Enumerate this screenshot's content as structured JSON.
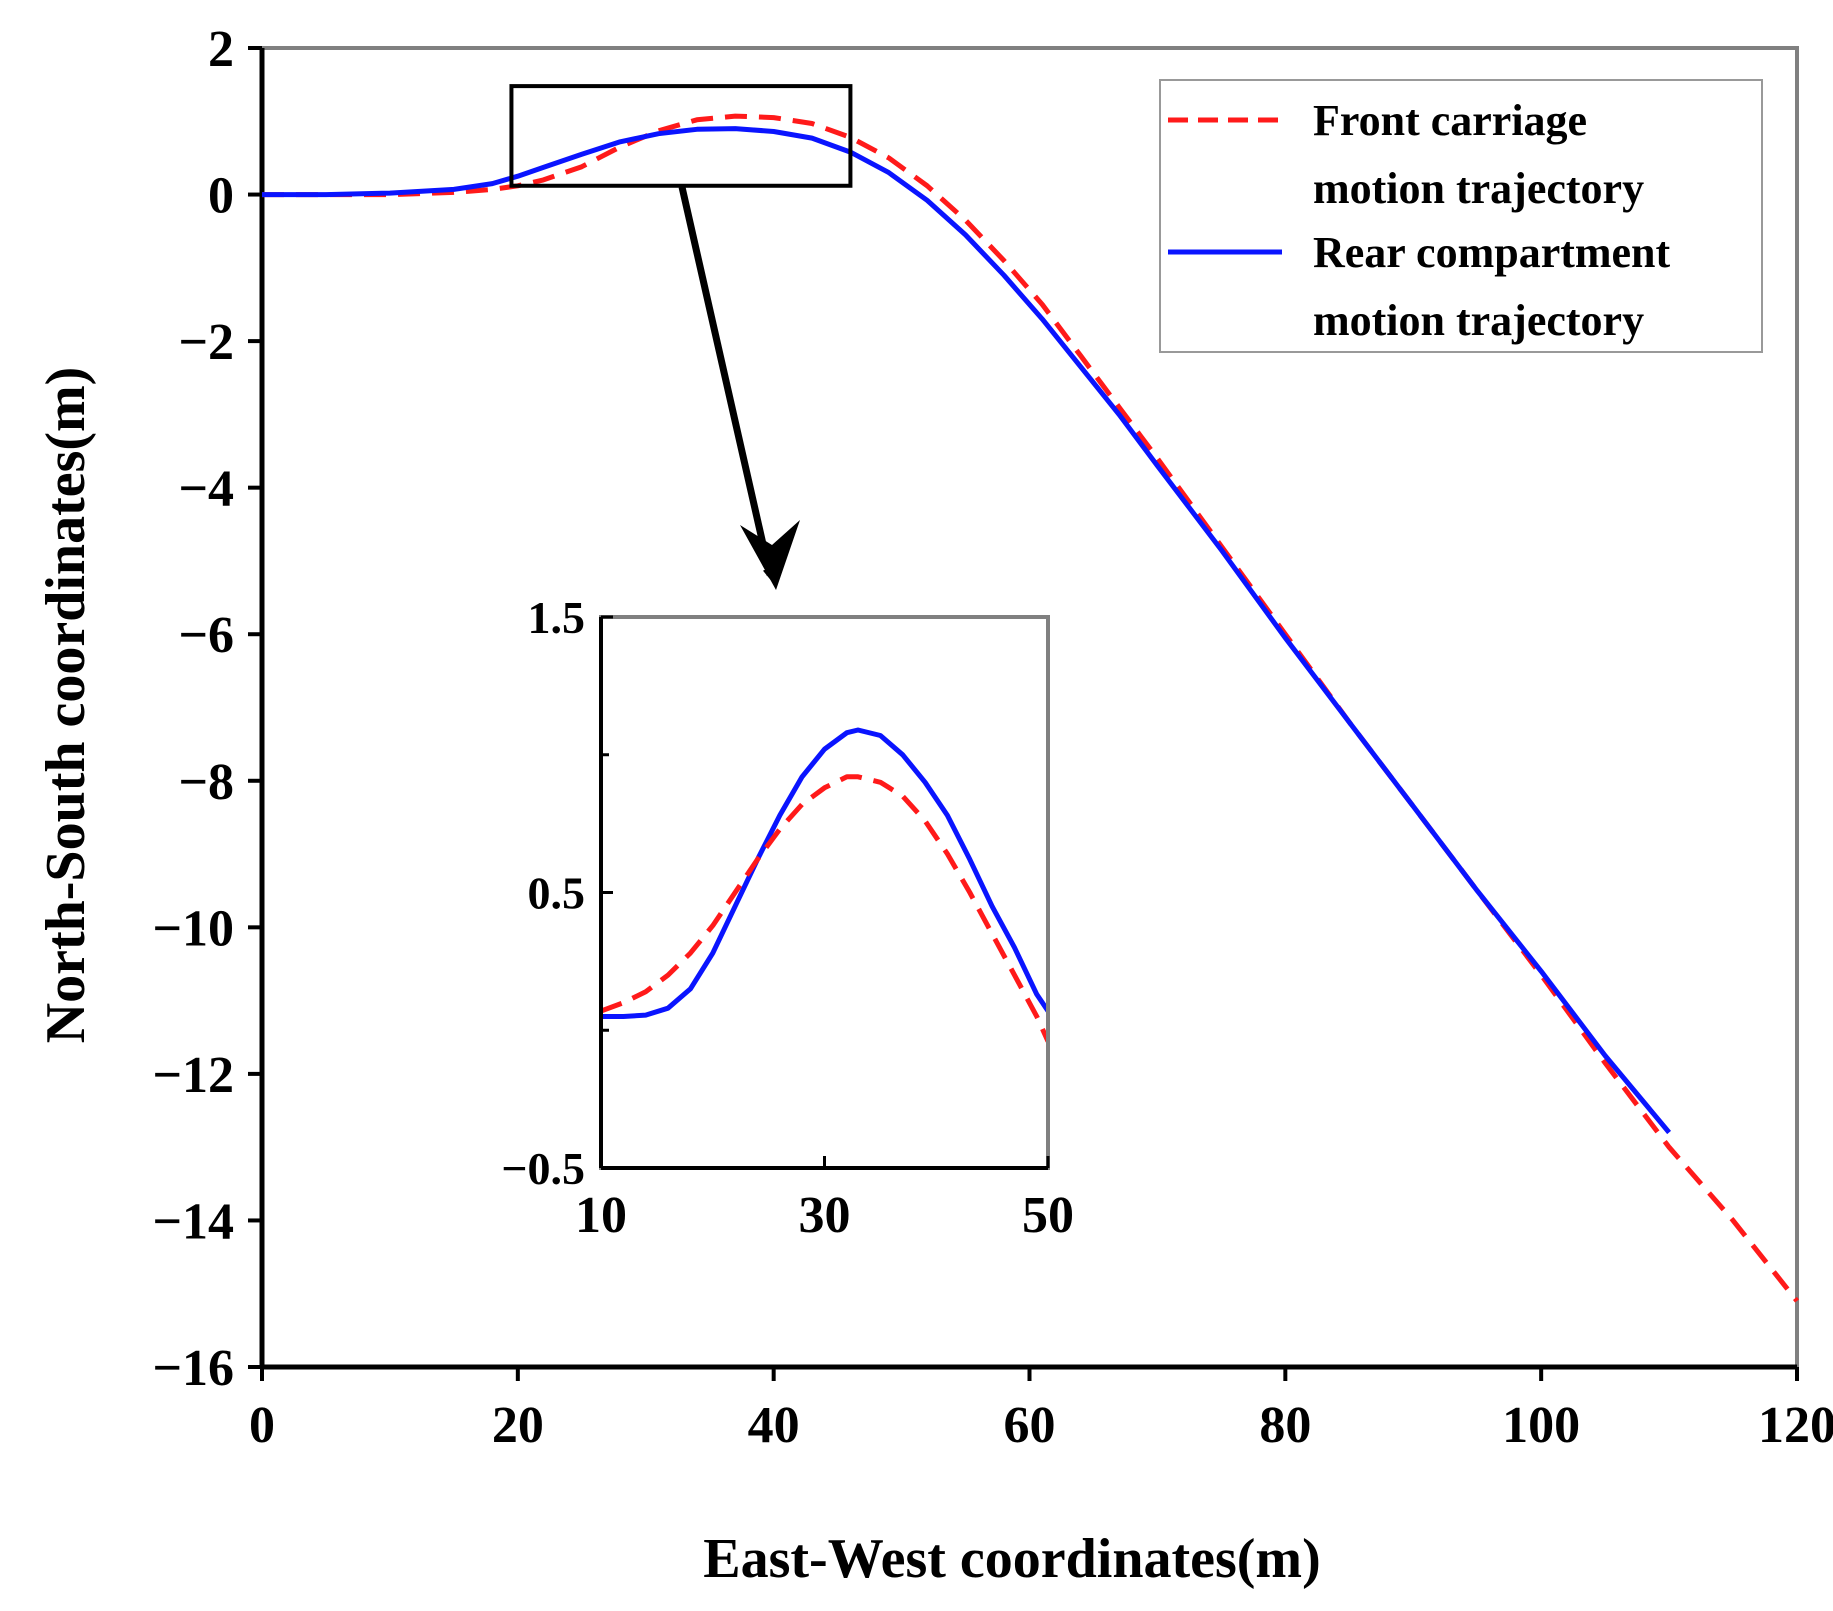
{
  "chart_data": {
    "type": "line",
    "xlabel": "East-West coordinates(m)",
    "ylabel": "North-South coordinates(m)",
    "xlim": [
      0,
      120
    ],
    "ylim": [
      -16,
      2
    ],
    "x_ticks": [
      "0",
      "20",
      "40",
      "60",
      "80",
      "100",
      "120"
    ],
    "y_ticks": [
      "2",
      "0",
      "−2",
      "−4",
      "−6",
      "−8",
      "−10",
      "−12",
      "−14",
      "−16"
    ],
    "legend": {
      "placement": "top-right",
      "entries": [
        {
          "line1": "Front carriage",
          "line2": "motion trajectory"
        },
        {
          "line1": "Rear compartment",
          "line2": "motion trajectory"
        }
      ]
    },
    "series": [
      {
        "name": "Front carriage motion trajectory",
        "color": "#ff1a1a",
        "style": "dashed",
        "points": [
          [
            0,
            0
          ],
          [
            5,
            0
          ],
          [
            10,
            0
          ],
          [
            15,
            0.03
          ],
          [
            18,
            0.07
          ],
          [
            20,
            0.12
          ],
          [
            22,
            0.2
          ],
          [
            25,
            0.38
          ],
          [
            28,
            0.65
          ],
          [
            31,
            0.87
          ],
          [
            34,
            1.02
          ],
          [
            37,
            1.07
          ],
          [
            40,
            1.05
          ],
          [
            43,
            0.97
          ],
          [
            46,
            0.78
          ],
          [
            49,
            0.5
          ],
          [
            52,
            0.12
          ],
          [
            55,
            -0.35
          ],
          [
            58,
            -0.9
          ],
          [
            61,
            -1.5
          ],
          [
            64,
            -2.2
          ],
          [
            67,
            -2.9
          ],
          [
            70,
            -3.6
          ],
          [
            75,
            -4.8
          ],
          [
            80,
            -6.0
          ],
          [
            85,
            -7.2
          ],
          [
            90,
            -8.35
          ],
          [
            95,
            -9.5
          ],
          [
            100,
            -10.65
          ],
          [
            105,
            -11.85
          ],
          [
            110,
            -13.0
          ],
          [
            115,
            -14.0
          ],
          [
            120,
            -15.1
          ]
        ]
      },
      {
        "name": "Rear compartment motion trajectory",
        "color": "#0a14ff",
        "style": "solid",
        "points": [
          [
            0,
            0
          ],
          [
            5,
            0
          ],
          [
            10,
            0.02
          ],
          [
            15,
            0.07
          ],
          [
            18,
            0.15
          ],
          [
            20,
            0.25
          ],
          [
            22,
            0.37
          ],
          [
            25,
            0.55
          ],
          [
            28,
            0.72
          ],
          [
            31,
            0.83
          ],
          [
            34,
            0.89
          ],
          [
            37,
            0.9
          ],
          [
            40,
            0.86
          ],
          [
            43,
            0.77
          ],
          [
            46,
            0.58
          ],
          [
            49,
            0.3
          ],
          [
            52,
            -0.08
          ],
          [
            55,
            -0.55
          ],
          [
            58,
            -1.1
          ],
          [
            61,
            -1.7
          ],
          [
            64,
            -2.35
          ],
          [
            67,
            -3.0
          ],
          [
            70,
            -3.7
          ],
          [
            75,
            -4.85
          ],
          [
            80,
            -6.05
          ],
          [
            85,
            -7.2
          ],
          [
            90,
            -8.35
          ],
          [
            95,
            -9.5
          ],
          [
            100,
            -10.6
          ],
          [
            105,
            -11.75
          ],
          [
            110,
            -12.8
          ]
        ]
      }
    ],
    "zoom_box": {
      "xlim": [
        19.5,
        46
      ],
      "ylim": [
        0.12,
        1.48
      ]
    },
    "inset": {
      "xlim": [
        10,
        50
      ],
      "ylim": [
        -0.5,
        1.5
      ],
      "x_ticks": [
        "10",
        "30",
        "50"
      ],
      "y_ticks": [
        "1.5",
        "0.5",
        "−0.5"
      ],
      "series": [
        {
          "name": "Rear compartment motion trajectory",
          "color": "#0a14ff",
          "style": "solid",
          "points": [
            [
              10,
              0.05
            ],
            [
              12,
              0.05
            ],
            [
              14,
              0.055
            ],
            [
              16,
              0.08
            ],
            [
              18,
              0.15
            ],
            [
              20,
              0.28
            ],
            [
              22,
              0.45
            ],
            [
              24,
              0.62
            ],
            [
              26,
              0.78
            ],
            [
              28,
              0.92
            ],
            [
              30,
              1.02
            ],
            [
              32,
              1.08
            ],
            [
              33,
              1.09
            ],
            [
              35,
              1.07
            ],
            [
              37,
              1.0
            ],
            [
              39,
              0.9
            ],
            [
              41,
              0.78
            ],
            [
              43,
              0.62
            ],
            [
              45,
              0.45
            ],
            [
              47,
              0.3
            ],
            [
              49,
              0.13
            ],
            [
              50,
              0.07
            ]
          ]
        },
        {
          "name": "Front carriage motion trajectory",
          "color": "#ff1a1a",
          "style": "dashed",
          "points": [
            [
              10,
              0.07
            ],
            [
              12,
              0.1
            ],
            [
              14,
              0.14
            ],
            [
              16,
              0.2
            ],
            [
              18,
              0.28
            ],
            [
              20,
              0.38
            ],
            [
              22,
              0.5
            ],
            [
              24,
              0.62
            ],
            [
              26,
              0.73
            ],
            [
              28,
              0.82
            ],
            [
              30,
              0.88
            ],
            [
              32,
              0.92
            ],
            [
              33,
              0.92
            ],
            [
              35,
              0.9
            ],
            [
              37,
              0.85
            ],
            [
              39,
              0.76
            ],
            [
              41,
              0.64
            ],
            [
              43,
              0.5
            ],
            [
              45,
              0.35
            ],
            [
              47,
              0.2
            ],
            [
              49,
              0.05
            ],
            [
              50,
              -0.04
            ]
          ]
        }
      ]
    }
  }
}
